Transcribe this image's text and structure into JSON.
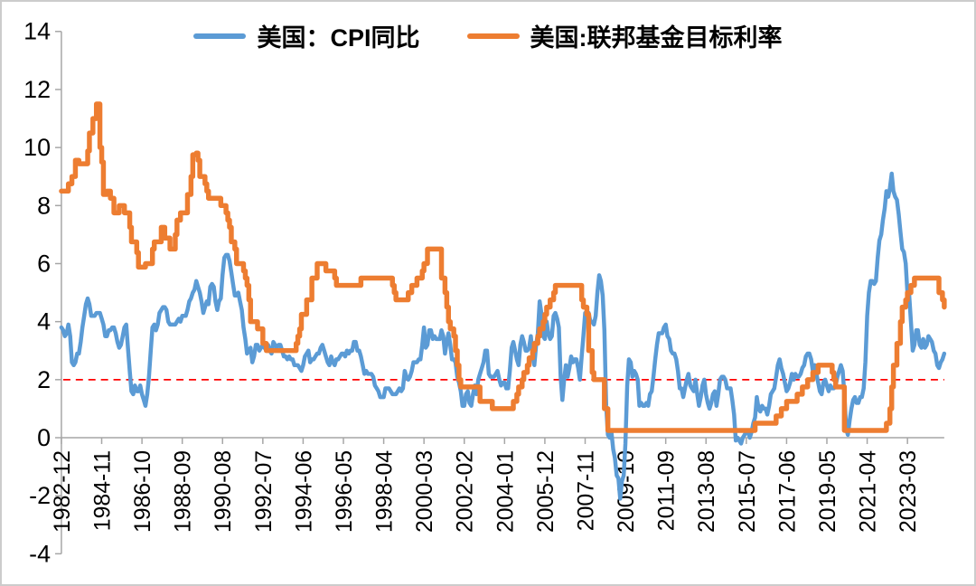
{
  "figure": {
    "background": "#FFFFFF",
    "border_color": "#CCCCCC"
  },
  "legend": {
    "position": "top-center"
  },
  "chart_data": {
    "type": "line",
    "title": "",
    "xlabel": "",
    "ylabel": "",
    "grid": false,
    "legend_position": "top-center",
    "ylim": [
      -4,
      14
    ],
    "y_ticks": [
      -4,
      -2,
      0,
      2,
      4,
      6,
      8,
      10,
      12,
      14
    ],
    "x_unit": "month",
    "x_start": "1982-12",
    "x_end": "2024-12",
    "x_tick_interval_months": 23,
    "x_tick_labels": [
      "1982-12",
      "1984-11",
      "1986-10",
      "1988-09",
      "1990-08",
      "1992-07",
      "1994-06",
      "1996-05",
      "1998-04",
      "2000-03",
      "2002-02",
      "2004-01",
      "2005-12",
      "2007-11",
      "2009-10",
      "2011-09",
      "2013-08",
      "2015-07",
      "2017-06",
      "2019-05",
      "2021-04",
      "2023-03"
    ],
    "axis_color": "#A6A6A6",
    "tick_label_color": "#000000",
    "reference_line": {
      "y": 2,
      "color": "#FF0000",
      "style": "dashed"
    },
    "series": [
      {
        "name": "美国：CPI同比",
        "color": "#5B9BD5",
        "interpolation": "linear",
        "frequency": "monthly",
        "start": "1982-12",
        "values": [
          3.8,
          3.7,
          3.5,
          3.6,
          3.9,
          3.5,
          2.6,
          2.5,
          2.6,
          2.9,
          2.9,
          3.3,
          3.8,
          4.2,
          4.6,
          4.8,
          4.6,
          4.2,
          4.2,
          4.2,
          4.3,
          4.3,
          4.3,
          4.1,
          3.9,
          3.5,
          3.5,
          3.7,
          3.7,
          3.8,
          3.8,
          3.6,
          3.3,
          3.1,
          3.2,
          3.5,
          3.8,
          3.9,
          3.1,
          2.3,
          1.6,
          1.5,
          1.8,
          1.6,
          1.6,
          1.8,
          1.5,
          1.3,
          1.1,
          1.5,
          2.1,
          3.0,
          3.8,
          3.9,
          3.7,
          3.9,
          4.3,
          4.4,
          4.5,
          4.5,
          4.4,
          4.0,
          3.9,
          3.9,
          3.9,
          3.9,
          4.0,
          4.1,
          4.0,
          4.2,
          4.2,
          4.2,
          4.4,
          4.7,
          4.8,
          5.0,
          5.1,
          5.4,
          5.2,
          5.0,
          4.7,
          4.3,
          4.5,
          4.7,
          4.6,
          5.2,
          5.3,
          5.2,
          4.7,
          4.4,
          4.7,
          4.8,
          5.6,
          6.2,
          6.3,
          6.3,
          6.1,
          5.7,
          5.3,
          4.9,
          4.9,
          5.0,
          4.7,
          4.4,
          3.8,
          3.4,
          2.9,
          3.0,
          3.1,
          2.6,
          2.8,
          3.2,
          3.2,
          3.0,
          3.1,
          3.2,
          3.1,
          3.0,
          3.2,
          3.0,
          2.9,
          3.3,
          3.2,
          3.1,
          3.2,
          3.2,
          3.0,
          2.8,
          2.8,
          2.7,
          2.8,
          2.7,
          2.7,
          2.5,
          2.5,
          2.5,
          2.4,
          2.3,
          2.5,
          2.8,
          2.9,
          3.0,
          2.6,
          2.7,
          2.7,
          2.8,
          2.9,
          2.9,
          3.1,
          3.2,
          3.0,
          2.8,
          2.6,
          2.5,
          2.8,
          2.6,
          2.5,
          2.7,
          2.7,
          2.8,
          2.9,
          2.9,
          2.8,
          3.0,
          2.9,
          3.0,
          3.0,
          3.3,
          3.3,
          3.0,
          3.0,
          2.8,
          2.5,
          2.2,
          2.3,
          2.2,
          2.2,
          2.2,
          2.1,
          1.8,
          1.7,
          1.6,
          1.4,
          1.4,
          1.4,
          1.7,
          1.7,
          1.7,
          1.6,
          1.5,
          1.5,
          1.5,
          1.6,
          1.7,
          1.6,
          1.7,
          2.3,
          2.1,
          2.0,
          2.1,
          2.3,
          2.6,
          2.6,
          2.6,
          2.7,
          2.7,
          3.2,
          3.8,
          3.1,
          3.2,
          3.7,
          3.7,
          3.4,
          3.5,
          3.4,
          3.4,
          3.4,
          3.7,
          3.5,
          2.9,
          3.3,
          3.6,
          3.2,
          2.7,
          2.7,
          2.6,
          2.1,
          1.9,
          1.6,
          1.1,
          1.1,
          1.5,
          1.6,
          1.2,
          1.1,
          1.5,
          1.8,
          1.5,
          2.0,
          2.2,
          2.4,
          2.6,
          3.0,
          3.0,
          2.2,
          2.1,
          2.1,
          2.1,
          2.2,
          2.3,
          2.0,
          1.8,
          1.9,
          1.9,
          1.7,
          1.7,
          2.3,
          3.1,
          3.3,
          3.0,
          2.7,
          2.5,
          3.2,
          3.5,
          3.3,
          3.0,
          3.0,
          3.1,
          3.5,
          2.8,
          2.5,
          3.2,
          3.6,
          4.7,
          4.3,
          3.5,
          3.4,
          4.0,
          3.6,
          3.4,
          3.5,
          4.2,
          4.3,
          4.1,
          3.8,
          2.1,
          1.3,
          2.0,
          2.5,
          2.1,
          2.4,
          2.8,
          2.6,
          2.7,
          2.7,
          2.4,
          2.0,
          2.8,
          3.5,
          4.3,
          4.1,
          4.3,
          4.0,
          4.0,
          3.9,
          4.2,
          5.0,
          5.6,
          5.4,
          4.9,
          3.7,
          1.1,
          0.1,
          0.0,
          0.2,
          -0.4,
          -0.7,
          -1.3,
          -1.4,
          -2.1,
          -1.5,
          -1.3,
          -0.2,
          1.8,
          2.7,
          2.6,
          2.1,
          2.3,
          2.2,
          2.0,
          1.1,
          1.2,
          1.1,
          1.1,
          1.2,
          1.1,
          1.5,
          1.6,
          2.1,
          2.7,
          3.2,
          3.6,
          3.6,
          3.6,
          3.8,
          3.9,
          3.5,
          3.4,
          3.0,
          2.9,
          2.9,
          2.7,
          2.3,
          1.7,
          1.7,
          1.4,
          1.7,
          2.0,
          2.2,
          1.8,
          1.7,
          1.6,
          2.0,
          1.5,
          1.1,
          1.4,
          1.8,
          2.0,
          1.5,
          1.2,
          1.0,
          1.2,
          1.5,
          1.6,
          1.1,
          1.5,
          2.0,
          2.1,
          2.1,
          2.0,
          1.7,
          1.7,
          1.7,
          1.3,
          0.8,
          -0.1,
          0.0,
          -0.1,
          -0.2,
          0.0,
          0.1,
          0.2,
          0.2,
          0.0,
          0.2,
          0.5,
          0.7,
          1.4,
          1.0,
          0.9,
          1.1,
          1.0,
          1.0,
          0.8,
          1.1,
          1.5,
          1.6,
          1.7,
          2.1,
          2.5,
          2.7,
          2.4,
          2.2,
          1.9,
          1.6,
          1.7,
          1.9,
          2.2,
          2.0,
          2.2,
          2.1,
          2.1,
          2.2,
          2.4,
          2.5,
          2.8,
          2.9,
          2.9,
          2.7,
          2.3,
          2.5,
          2.2,
          1.9,
          1.6,
          1.5,
          1.9,
          2.0,
          1.8,
          1.6,
          1.8,
          1.7,
          1.7,
          1.8,
          2.1,
          2.3,
          2.5,
          2.3,
          1.5,
          0.3,
          0.1,
          0.6,
          1.0,
          1.3,
          1.4,
          1.2,
          1.2,
          1.4,
          1.4,
          1.7,
          2.6,
          4.2,
          5.0,
          5.4,
          5.4,
          5.3,
          5.4,
          6.2,
          6.8,
          7.0,
          7.5,
          7.9,
          8.5,
          8.3,
          8.6,
          9.1,
          8.5,
          8.3,
          8.2,
          7.7,
          7.1,
          6.5,
          6.4,
          6.0,
          5.0,
          4.9,
          4.0,
          3.0,
          3.2,
          3.7,
          3.7,
          3.2,
          3.1,
          3.4,
          3.1,
          3.2,
          3.5,
          3.4,
          3.3,
          3.0,
          2.9,
          2.5,
          2.4,
          2.6,
          2.7,
          2.9
        ]
      },
      {
        "name": "美国:联邦基金目标利率",
        "color": "#ED7D31",
        "interpolation": "step-after",
        "points": [
          [
            "1982-12",
            8.5
          ],
          [
            "1983-04",
            8.75
          ],
          [
            "1983-06",
            9.0
          ],
          [
            "1983-08",
            9.56
          ],
          [
            "1983-10",
            9.44
          ],
          [
            "1984-03",
            9.88
          ],
          [
            "1984-04",
            10.5
          ],
          [
            "1984-06",
            11.0
          ],
          [
            "1984-08",
            11.5
          ],
          [
            "1984-10",
            10.0
          ],
          [
            "1984-11",
            9.5
          ],
          [
            "1984-12",
            8.38
          ],
          [
            "1985-02",
            8.5
          ],
          [
            "1985-04",
            8.25
          ],
          [
            "1985-06",
            7.75
          ],
          [
            "1985-09",
            8.0
          ],
          [
            "1985-12",
            7.75
          ],
          [
            "1986-03",
            7.25
          ],
          [
            "1986-04",
            6.75
          ],
          [
            "1986-07",
            6.38
          ],
          [
            "1986-08",
            5.88
          ],
          [
            "1986-12",
            6.0
          ],
          [
            "1987-04",
            6.5
          ],
          [
            "1987-05",
            6.75
          ],
          [
            "1987-09",
            7.25
          ],
          [
            "1987-11",
            6.88
          ],
          [
            "1988-02",
            6.5
          ],
          [
            "1988-05",
            7.0
          ],
          [
            "1988-06",
            7.5
          ],
          [
            "1988-08",
            7.75
          ],
          [
            "1988-12",
            8.38
          ],
          [
            "1989-02",
            9.0
          ],
          [
            "1989-03",
            9.75
          ],
          [
            "1989-05",
            9.81
          ],
          [
            "1989-06",
            9.56
          ],
          [
            "1989-07",
            9.0
          ],
          [
            "1989-10",
            8.75
          ],
          [
            "1989-11",
            8.5
          ],
          [
            "1989-12",
            8.25
          ],
          [
            "1990-07",
            8.0
          ],
          [
            "1990-10",
            7.75
          ],
          [
            "1990-11",
            7.5
          ],
          [
            "1990-12",
            7.25
          ],
          [
            "1991-01",
            6.75
          ],
          [
            "1991-03",
            6.5
          ],
          [
            "1991-04",
            6.0
          ],
          [
            "1991-08",
            5.75
          ],
          [
            "1991-09",
            5.5
          ],
          [
            "1991-10",
            5.25
          ],
          [
            "1991-11",
            4.75
          ],
          [
            "1991-12",
            4.0
          ],
          [
            "1992-04",
            3.75
          ],
          [
            "1992-07",
            3.25
          ],
          [
            "1992-09",
            3.0
          ],
          [
            "1994-02",
            3.25
          ],
          [
            "1994-03",
            3.5
          ],
          [
            "1994-04",
            3.75
          ],
          [
            "1994-05",
            4.25
          ],
          [
            "1994-08",
            4.75
          ],
          [
            "1994-11",
            5.5
          ],
          [
            "1995-02",
            6.0
          ],
          [
            "1995-07",
            5.75
          ],
          [
            "1995-12",
            5.5
          ],
          [
            "1996-01",
            5.25
          ],
          [
            "1997-03",
            5.5
          ],
          [
            "1998-09",
            5.25
          ],
          [
            "1998-10",
            5.0
          ],
          [
            "1998-11",
            4.75
          ],
          [
            "1999-06",
            5.0
          ],
          [
            "1999-08",
            5.25
          ],
          [
            "1999-11",
            5.5
          ],
          [
            "2000-02",
            5.75
          ],
          [
            "2000-03",
            6.0
          ],
          [
            "2000-05",
            6.5
          ],
          [
            "2001-01",
            5.5
          ],
          [
            "2001-03",
            5.0
          ],
          [
            "2001-04",
            4.5
          ],
          [
            "2001-05",
            4.0
          ],
          [
            "2001-06",
            3.75
          ],
          [
            "2001-08",
            3.5
          ],
          [
            "2001-09",
            3.0
          ],
          [
            "2001-10",
            2.5
          ],
          [
            "2001-11",
            2.0
          ],
          [
            "2001-12",
            1.75
          ],
          [
            "2002-11",
            1.25
          ],
          [
            "2003-06",
            1.0
          ],
          [
            "2004-06",
            1.25
          ],
          [
            "2004-08",
            1.5
          ],
          [
            "2004-09",
            1.75
          ],
          [
            "2004-11",
            2.0
          ],
          [
            "2004-12",
            2.25
          ],
          [
            "2005-02",
            2.5
          ],
          [
            "2005-03",
            2.75
          ],
          [
            "2005-05",
            3.0
          ],
          [
            "2005-06",
            3.25
          ],
          [
            "2005-08",
            3.5
          ],
          [
            "2005-09",
            3.75
          ],
          [
            "2005-11",
            4.0
          ],
          [
            "2005-12",
            4.25
          ],
          [
            "2006-01",
            4.5
          ],
          [
            "2006-03",
            4.75
          ],
          [
            "2006-05",
            5.0
          ],
          [
            "2006-06",
            5.25
          ],
          [
            "2007-09",
            4.75
          ],
          [
            "2007-10",
            4.5
          ],
          [
            "2007-12",
            4.25
          ],
          [
            "2008-01",
            3.0
          ],
          [
            "2008-03",
            2.25
          ],
          [
            "2008-04",
            2.0
          ],
          [
            "2008-10",
            1.0
          ],
          [
            "2008-12",
            0.25
          ],
          [
            "2015-12",
            0.5
          ],
          [
            "2016-12",
            0.75
          ],
          [
            "2017-03",
            1.0
          ],
          [
            "2017-06",
            1.25
          ],
          [
            "2017-12",
            1.5
          ],
          [
            "2018-03",
            1.75
          ],
          [
            "2018-06",
            2.0
          ],
          [
            "2018-09",
            2.25
          ],
          [
            "2018-12",
            2.5
          ],
          [
            "2019-08",
            2.25
          ],
          [
            "2019-09",
            2.0
          ],
          [
            "2019-10",
            1.75
          ],
          [
            "2020-03",
            0.25
          ],
          [
            "2022-03",
            0.5
          ],
          [
            "2022-05",
            1.0
          ],
          [
            "2022-06",
            1.75
          ],
          [
            "2022-07",
            2.5
          ],
          [
            "2022-09",
            3.25
          ],
          [
            "2022-11",
            4.0
          ],
          [
            "2022-12",
            4.5
          ],
          [
            "2023-02",
            4.75
          ],
          [
            "2023-03",
            5.0
          ],
          [
            "2023-05",
            5.25
          ],
          [
            "2023-07",
            5.5
          ],
          [
            "2024-09",
            5.0
          ],
          [
            "2024-11",
            4.75
          ],
          [
            "2024-12",
            4.5
          ]
        ]
      }
    ]
  }
}
